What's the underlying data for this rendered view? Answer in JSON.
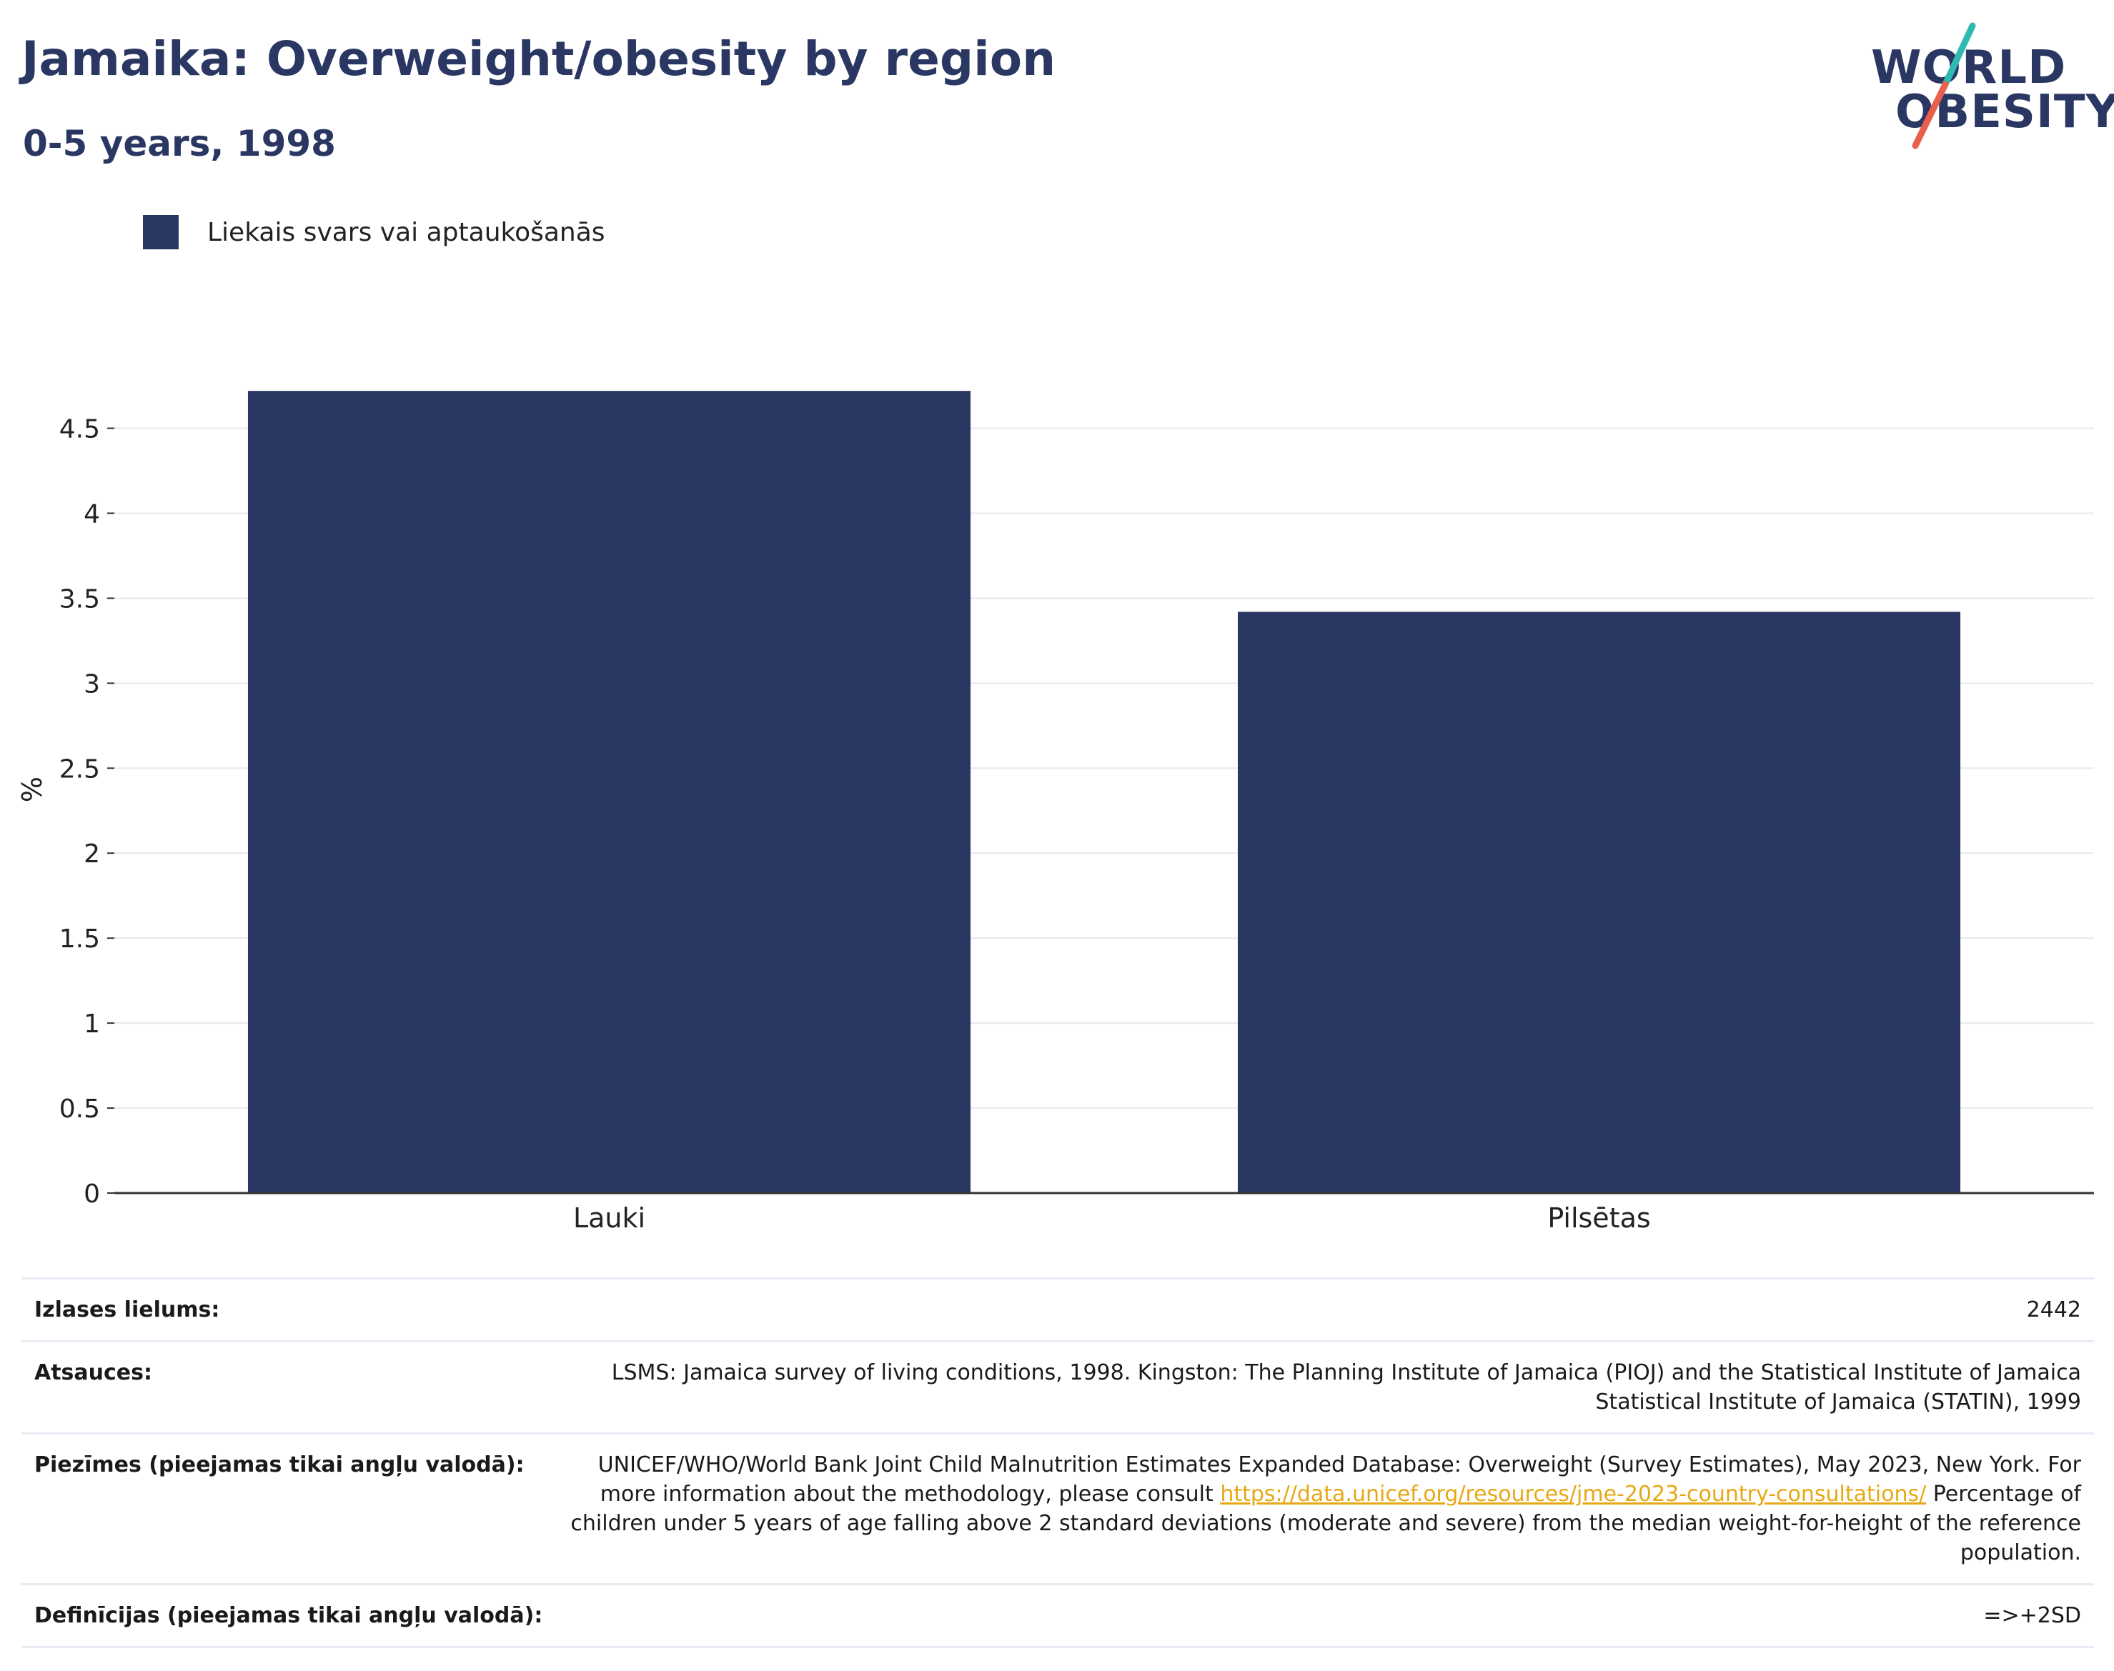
{
  "header": {
    "title": "Jamaika: Overweight/obesity by region",
    "subtitle": "0-5 years, 1998"
  },
  "logo": {
    "line1": "WORLD",
    "line2": "OBESITY"
  },
  "legend": {
    "label": "Liekais svars vai aptaukošanās"
  },
  "colors": {
    "bar": "#2b3763",
    "brand": "#2b3763",
    "teal": "#2fb9b3",
    "coral": "#e8604c",
    "link": "#e6a915"
  },
  "chart_data": {
    "type": "bar",
    "categories": [
      "Lauki",
      "Pilsētas"
    ],
    "series": [
      {
        "name": "Liekais svars vai aptaukošanās",
        "values": [
          4.72,
          3.42
        ]
      }
    ],
    "ylabel": "%",
    "ylim": [
      0,
      4.75
    ],
    "yticks": [
      0,
      0.5,
      1,
      1.5,
      2,
      2.5,
      3,
      3.5,
      4,
      4.5
    ],
    "ytick_labels": [
      "0",
      "0.5",
      "1",
      "1.5",
      "2",
      "2.5",
      "3",
      "3.5",
      "4",
      "4.5"
    ],
    "grid": true,
    "legend_position": "top-left"
  },
  "footer": {
    "sample": {
      "label": "Izlases lielums:",
      "value": "2442"
    },
    "sources": {
      "label": "Atsauces:",
      "value": "LSMS: Jamaica survey of living conditions, 1998. Kingston: The Planning Institute of Jamaica (PIOJ) and the Statistical Institute of Jamaica Statistical Institute of Jamaica (STATIN), 1999"
    },
    "notes": {
      "label": "Piezīmes (pieejamas tikai angļu valodā):",
      "text_before": "UNICEF/WHO/World Bank Joint Child Malnutrition Estimates Expanded Database: Overweight (Survey Estimates), May 2023, New York. For more information about the methodology, please consult ",
      "link": "https://data.unicef.org/resources/jme-2023-country-consultations/",
      "text_after": " Percentage of children under 5 years of age falling above 2 standard deviations (moderate and severe) from the median weight-for-height of the reference population."
    },
    "definitions": {
      "label": "Definīcijas (pieejamas tikai angļu valodā):",
      "value": "=>+2SD"
    }
  }
}
